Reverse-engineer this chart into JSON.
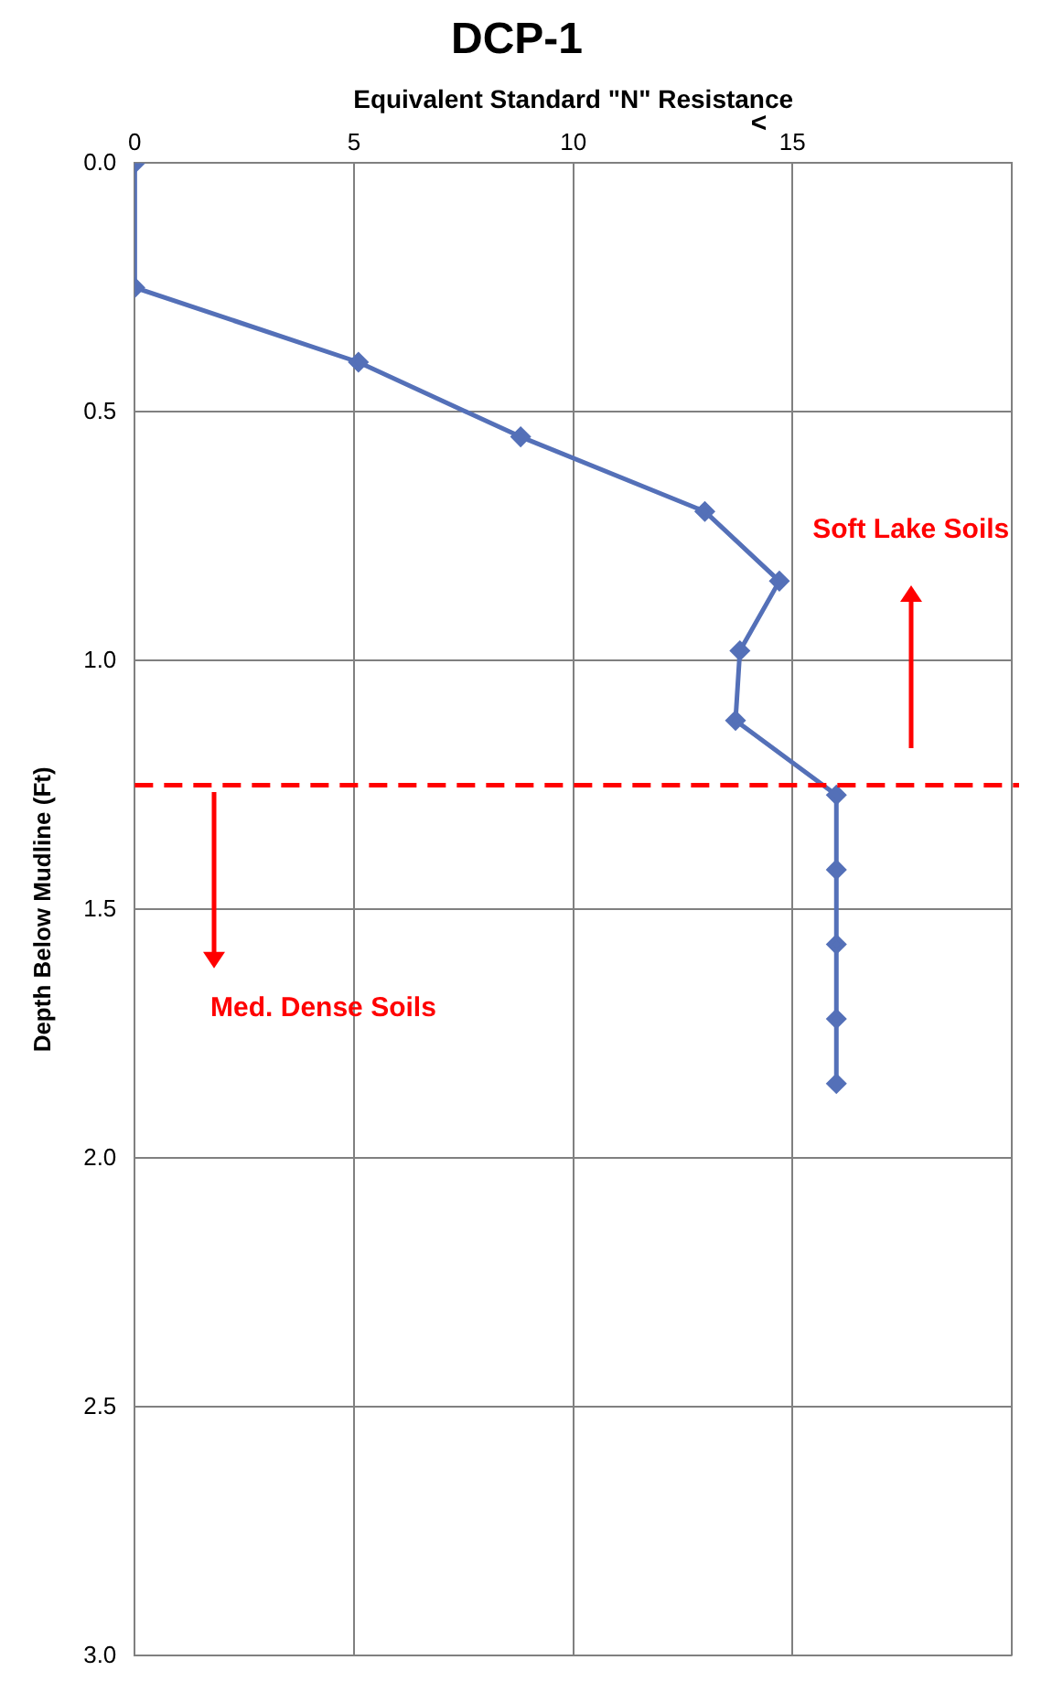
{
  "chart_data": {
    "type": "line",
    "title": "DCP-1",
    "xlabel": "Equivalent Standard \"N\" Resistance",
    "ylabel": "Depth Below Mudline (Ft)",
    "x": [
      0,
      0,
      5.1,
      8.8,
      13,
      14.7,
      13.8,
      13.7,
      16,
      16,
      16,
      16,
      16
    ],
    "series": [
      {
        "color": "#5470b8",
        "values": [
          0,
          0.25,
          0.4,
          0.55,
          0.7,
          0.84,
          0.98,
          1.12,
          1.27,
          1.42,
          1.57,
          1.72,
          1.85
        ]
      }
    ],
    "xlim": [
      0,
      20
    ],
    "xticks": [
      0,
      5,
      10,
      15,
      {
        "value": 20,
        "label": null
      }
    ],
    "ylim": [
      3,
      0
    ],
    "yticks": [
      {
        "value": 0,
        "label": "0.0"
      },
      {
        "value": 0.5,
        "label": "0.5"
      },
      {
        "value": 1,
        "label": "1.0"
      },
      {
        "value": 1.5,
        "label": "1.5"
      },
      {
        "value": 2,
        "label": "2.0"
      },
      {
        "value": 2.5,
        "label": "2.5"
      },
      {
        "value": 3,
        "label": "3.0"
      }
    ],
    "ref_lines": [
      {
        "axis": "y",
        "value": 1.25,
        "color": "#ff0000",
        "line_style": "dashed"
      }
    ],
    "annotations": [
      "<",
      "Soft Lake Soils",
      "Med. Dense Soils"
    ],
    "grid": true,
    "marker": "diamond",
    "line_style": "solid",
    "legend": false
  }
}
